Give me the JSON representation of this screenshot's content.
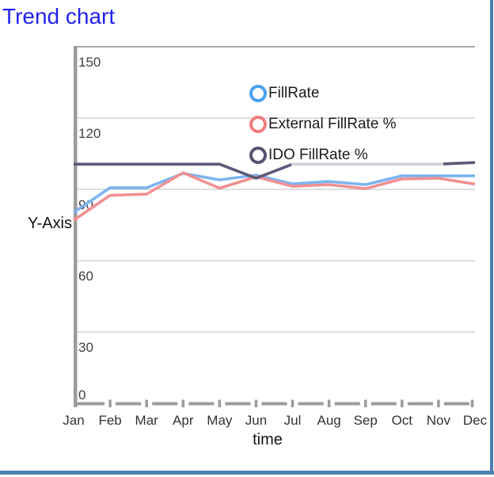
{
  "page": {
    "title": "Trend chart",
    "title_color": "#2222ef",
    "border_color": "#4d81b1"
  },
  "chart_data": {
    "type": "line",
    "title": "Trend chart",
    "xlabel": "time",
    "ylabel": "Y-Axis",
    "categories": [
      "Jan",
      "Feb",
      "Mar",
      "Apr",
      "May",
      "Jun",
      "Jul",
      "Aug",
      "Sep",
      "Oct",
      "Nov",
      "Dec"
    ],
    "y_ticks": [
      0,
      30,
      60,
      90,
      120,
      150
    ],
    "ylim": [
      0,
      150
    ],
    "grid": true,
    "legend_position": "top-right-inside",
    "series": [
      {
        "name": "FillRate",
        "line_color": "#7db4f0",
        "marker_color": "#4aa1f3",
        "values": [
          80.3,
          90.7,
          90.7,
          96.7,
          94.0,
          96.0,
          92.3,
          93.3,
          92.0,
          95.7,
          95.7,
          95.7
        ]
      },
      {
        "name": "External FillRate %",
        "line_color": "#f19091",
        "marker_color": "#ef7d7c",
        "values": [
          77.0,
          87.5,
          88.0,
          97.0,
          90.5,
          95.3,
          91.3,
          92.0,
          90.3,
          94.4,
          94.7,
          92.2
        ]
      },
      {
        "name": "IDO FillRate %",
        "line_color": "#5d5a79",
        "marker_color": "#555270",
        "values": [
          100.6,
          100.6,
          100.6,
          100.6,
          100.6,
          94.7,
          100.6,
          100.6,
          100.6,
          100.6,
          100.6,
          101.3
        ]
      }
    ]
  }
}
